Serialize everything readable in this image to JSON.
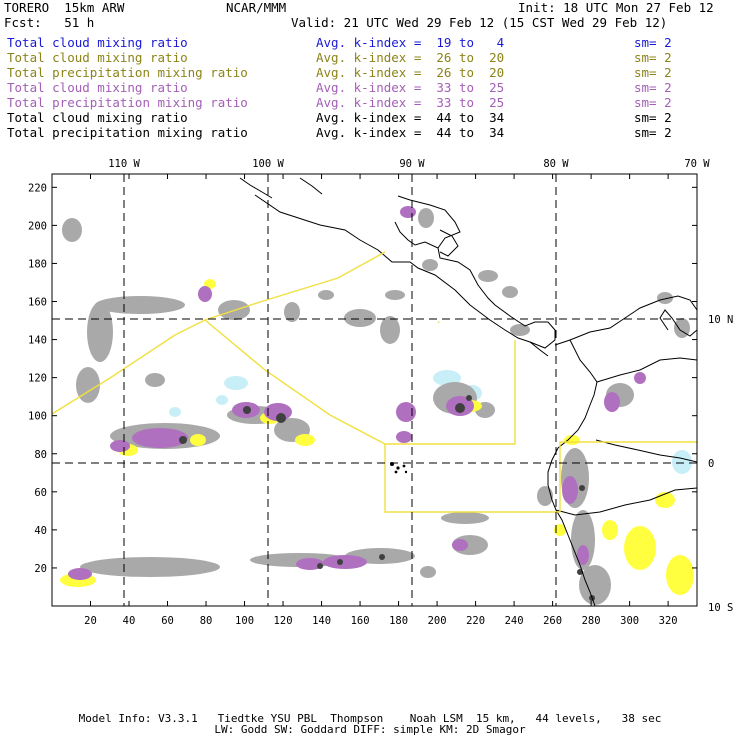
{
  "header": {
    "model": "TORERO  15km ARW",
    "org": "NCAR/MMM",
    "init": "Init: 18 UTC Mon 27 Feb 12",
    "fcst": "Fcst:   51 h",
    "valid": "Valid: 21 UTC Wed 29 Feb 12 (15 CST Wed 29 Feb 12)"
  },
  "legend": [
    {
      "name": "Total cloud mixing ratio",
      "idx": "Avg. k-index =  19 to   4",
      "sm": "sm= 2",
      "color": "#1a1ad6"
    },
    {
      "name": "Total cloud mixing ratio",
      "idx": "Avg. k-index =  26 to  20",
      "sm": "sm= 2",
      "color": "#8c8418"
    },
    {
      "name": "Total precipitation mixing ratio",
      "idx": "Avg. k-index =  26 to  20",
      "sm": "sm= 2",
      "color": "#8c8418"
    },
    {
      "name": "Total cloud mixing ratio",
      "idx": "Avg. k-index =  33 to  25",
      "sm": "sm= 2",
      "color": "#a45fb6"
    },
    {
      "name": "Total precipitation mixing ratio",
      "idx": "Avg. k-index =  33 to  25",
      "sm": "sm= 2",
      "color": "#a45fb6"
    },
    {
      "name": "Total cloud mixing ratio",
      "idx": "Avg. k-index =  44 to  34",
      "sm": "sm= 2",
      "color": "#000000"
    },
    {
      "name": "Total precipitation mixing ratio",
      "idx": "Avg. k-index =  44 to  34",
      "sm": "sm= 2",
      "color": "#000000"
    }
  ],
  "map": {
    "lon_labels": [
      "110 W",
      "100 W",
      "90 W",
      "80 W",
      "70 W"
    ],
    "lat_labels": [
      "10 N",
      "0",
      "10 S"
    ],
    "x_ticks": [
      20,
      40,
      60,
      80,
      100,
      120,
      140,
      160,
      180,
      200,
      220,
      240,
      260,
      280,
      300,
      320
    ],
    "y_ticks": [
      20,
      40,
      60,
      80,
      100,
      120,
      140,
      160,
      180,
      200,
      220
    ],
    "x_range": [
      0,
      335
    ],
    "y_range": [
      0,
      227
    ],
    "colors": {
      "blue_cloud": "#c8eef8",
      "yellow": "#ffff40",
      "violet": "#b070c0",
      "grey": "#a9a9a9",
      "dark": "#404040",
      "domain": "#f0e040",
      "coast": "#000000"
    }
  },
  "footer": {
    "line1": "Model Info: V3.3.1   Tiedtke YSU PBL  Thompson    Noah LSM  15 km,   44 levels,   38 sec",
    "line2": "LW: Godd SW: Goddard DIFF: simple KM: 2D Smagor"
  }
}
